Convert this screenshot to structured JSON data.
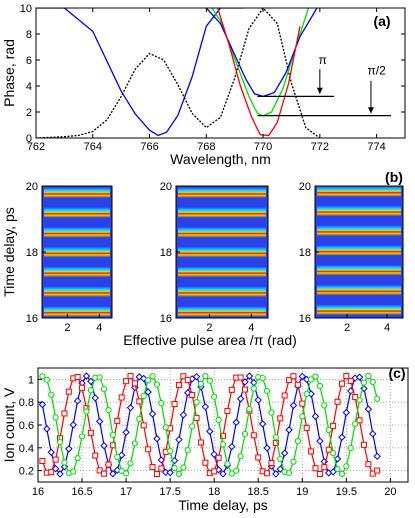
{
  "chart_data": [
    {
      "panel_label": "(a)",
      "type": "line",
      "xlabel": "Wavelength, nm",
      "ylabel": "Phase, rad",
      "xlim": [
        762,
        775
      ],
      "ylim": [
        0,
        10
      ],
      "xticks": [
        "762",
        "764",
        "766",
        "768",
        "770",
        "772",
        "774"
      ],
      "yticks": [
        "0",
        "2",
        "4",
        "6",
        "8",
        "10"
      ],
      "grid": false,
      "series": [
        {
          "color": "#0000ff",
          "style": "solid",
          "x": [
            762,
            763,
            764,
            765,
            765.5,
            766,
            766.3,
            766.6,
            767,
            767.5,
            768,
            768.5,
            769,
            769.3
          ],
          "y": [
            10,
            10,
            8.2,
            3.6,
            1.85,
            0.6,
            0.2,
            0.45,
            1.75,
            4.7,
            8.6,
            10,
            10,
            10
          ]
        },
        {
          "color": "#000000",
          "style": "dashed",
          "x": [
            762,
            763,
            763.5,
            764,
            764.5,
            765,
            765.5,
            766,
            766.5,
            767,
            767.5,
            768,
            768.5,
            769,
            769.5,
            770,
            770.5,
            771,
            771.5,
            772
          ],
          "y": [
            0,
            0.1,
            0.2,
            0.5,
            1.4,
            3.2,
            5.3,
            6.5,
            6.0,
            4.1,
            1.9,
            0.8,
            1.6,
            4.6,
            8.4,
            10,
            8.8,
            4.2,
            0.8,
            0
          ]
        },
        {
          "color": "#00dd00",
          "style": "solid",
          "x": [
            768.2,
            768.5,
            769,
            769.5,
            769.8,
            770,
            770.3,
            770.7,
            771.2,
            771.6
          ],
          "y": [
            10,
            9.0,
            6.1,
            3.2,
            1.9,
            1.7,
            2.0,
            3.8,
            7.3,
            10
          ]
        },
        {
          "color": "#0000ff",
          "style": "solid",
          "x": [
            768.0,
            768.5,
            769,
            769.4,
            769.7,
            770,
            770.4,
            770.8,
            771.3,
            771.9
          ],
          "y": [
            10,
            8.8,
            6.4,
            4.5,
            3.4,
            3.2,
            3.5,
            5.0,
            7.8,
            10
          ]
        },
        {
          "color": "#ff0000",
          "style": "solid",
          "x": [
            768.4,
            768.8,
            769.2,
            769.6,
            769.9,
            770.2,
            770.5,
            770.9,
            771.3
          ],
          "y": [
            10,
            7.2,
            4.0,
            1.6,
            0.25,
            0.2,
            1.2,
            4.2,
            8.6
          ]
        }
      ],
      "annotations": [
        {
          "text": "π",
          "x": 772.1,
          "y": 5.7
        },
        {
          "text": "π/2",
          "x": 774.0,
          "y": 4.9
        }
      ],
      "hlines": [
        {
          "y": 3.2,
          "x0": 769.8,
          "x1": 772.5
        },
        {
          "y": 1.72,
          "x0": 769.8,
          "x1": 775
        }
      ],
      "arrows": [
        {
          "x": 772.0,
          "y0": 5.3,
          "y1": 3.4
        },
        {
          "x": 773.8,
          "y0": 4.4,
          "y1": 1.9
        }
      ]
    },
    {
      "panel_label": "(b)",
      "type": "heatmap",
      "xlabel": "Effective pulse area  /π (rad)",
      "ylabel": "Time delay, ps",
      "ylim": [
        16,
        20
      ],
      "yticks": [
        "16",
        "18",
        "20"
      ],
      "subpanels": [
        {
          "xlim": [
            0.4,
            4.8
          ],
          "xticks": [
            "2",
            "4"
          ],
          "period_ps": 0.6,
          "offset_ps": 16.2
        },
        {
          "xlim": [
            0.4,
            4.8
          ],
          "xticks": [
            "2",
            "4"
          ],
          "period_ps": 0.6,
          "offset_ps": 16.2
        },
        {
          "xlim": [
            0.4,
            4.8
          ],
          "xticks": [
            "2",
            "4"
          ],
          "period_ps": 0.6,
          "offset_ps": 16.25
        }
      ]
    },
    {
      "panel_label": "(c)",
      "type": "line",
      "xlabel": "Time delay, ps",
      "ylabel": "Ion count, V",
      "xlim": [
        16,
        20.2
      ],
      "ylim": [
        0.1,
        1.1
      ],
      "xticks": [
        "16",
        "16.5",
        "17",
        "17.5",
        "18",
        "18.5",
        "19",
        "19.5",
        "20"
      ],
      "yticks": [
        "0.2",
        "0.4",
        "0.6",
        "0.8",
        "1"
      ],
      "grid": true,
      "series": [
        {
          "color": "#0000ff",
          "marker": "diamond",
          "period": 0.615,
          "phase": 0.1,
          "x_start": 16.05,
          "x_end": 19.85,
          "step": 0.05
        },
        {
          "color": "#ff0000",
          "marker": "square",
          "period": 0.615,
          "phase": 0.3,
          "x_start": 16.05,
          "x_end": 19.85,
          "step": 0.05
        },
        {
          "color": "#00dd00",
          "marker": "circle",
          "period": 0.615,
          "phase": -0.1,
          "x_start": 16.05,
          "x_end": 19.85,
          "step": 0.05
        }
      ]
    }
  ]
}
